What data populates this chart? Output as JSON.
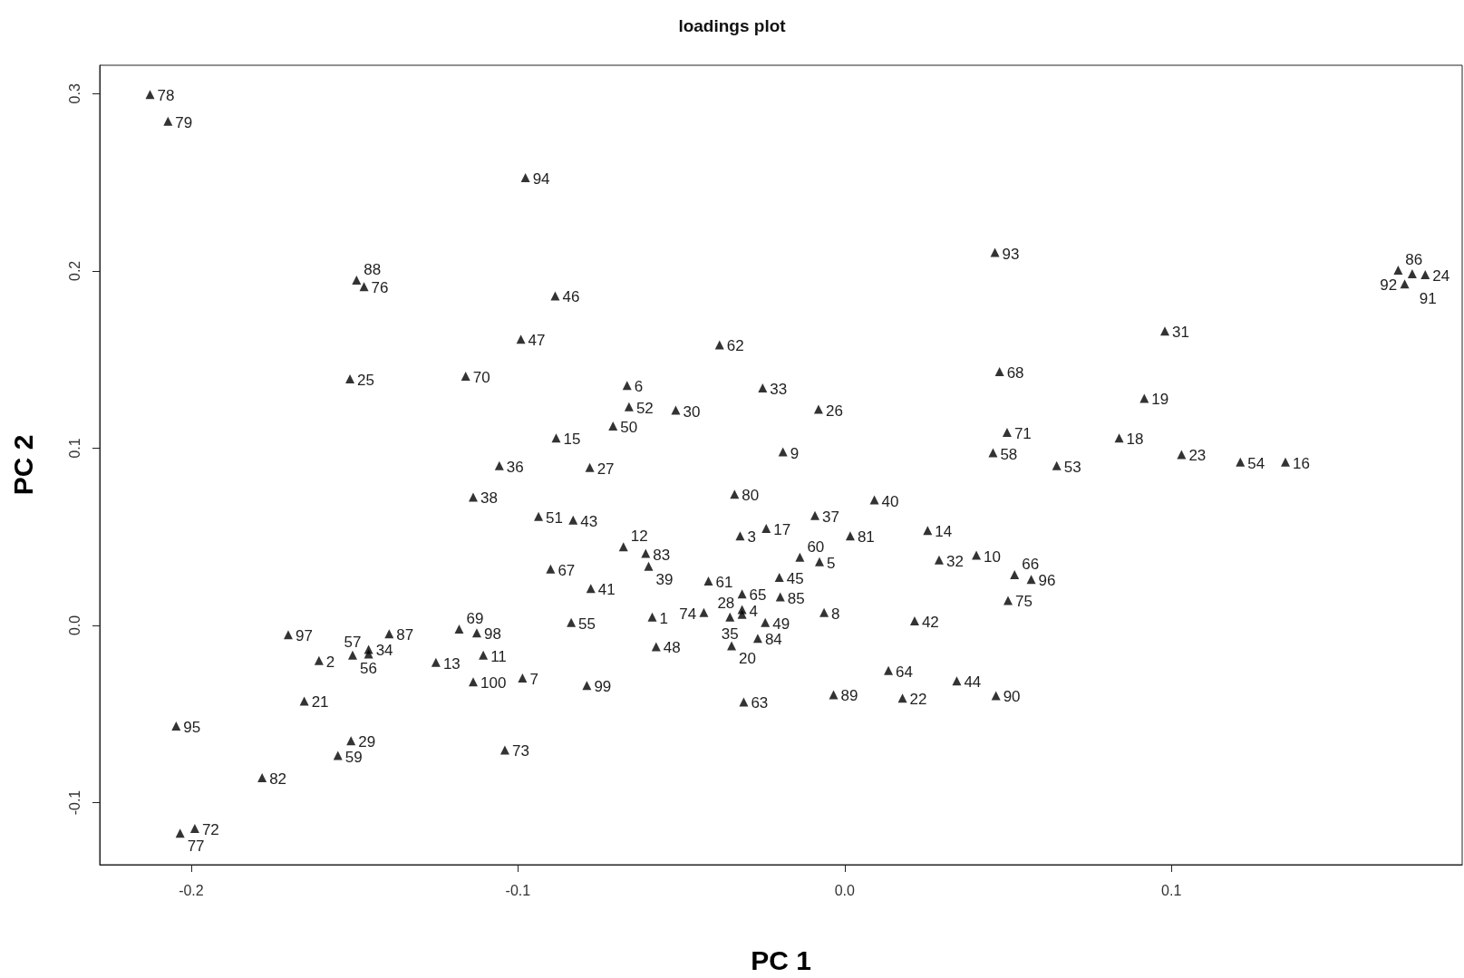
{
  "chart_data": {
    "type": "scatter",
    "title": "loadings plot",
    "xlabel": "PC 1",
    "ylabel": "PC 2",
    "color": "#000000",
    "marker": "triangle",
    "grid": false,
    "xlim": [
      -0.228,
      0.189
    ],
    "ylim": [
      -0.135,
      0.316
    ],
    "xticks": [
      -0.2,
      -0.1,
      {
        "value": 0,
        "label": "0.0"
      },
      0.1
    ],
    "yticks": [
      -0.1,
      {
        "value": 0,
        "label": "0.0"
      },
      0.1,
      0.2,
      0.3
    ],
    "x": [
      -0.2126,
      -0.2071,
      -0.0977,
      0.046,
      0.1694,
      0.1737,
      0.1777,
      0.1714,
      -0.1494,
      -0.1471,
      -0.0886,
      0.098,
      -0.0991,
      -0.0383,
      -0.1514,
      -0.116,
      0.0474,
      -0.0666,
      -0.0251,
      -0.066,
      -0.0517,
      -0.008,
      0.0917,
      -0.0709,
      -0.0883,
      0.0497,
      -0.0189,
      0.084,
      0.1031,
      0.1211,
      0.1349,
      0.0454,
      0.0649,
      -0.1057,
      -0.078,
      -0.1137,
      -0.0337,
      0.0091,
      -0.0937,
      -0.0831,
      -0.0091,
      -0.024,
      0.0017,
      0.0254,
      -0.032,
      -0.0677,
      -0.0609,
      -0.0137,
      -0.0077,
      0.0289,
      0.0403,
      -0.06,
      -0.09,
      -0.02,
      0.052,
      0.0571,
      -0.0417,
      -0.0777,
      -0.0314,
      -0.0197,
      0.05,
      -0.0314,
      -0.0314,
      -0.0351,
      -0.0431,
      -0.0243,
      -0.0346,
      -0.0266,
      -0.0063,
      0.0214,
      -0.0589,
      -0.0837,
      -0.0577,
      -0.1703,
      -0.1394,
      -0.118,
      -0.1126,
      -0.1609,
      -0.1506,
      -0.1457,
      -0.1457,
      -0.1251,
      -0.1106,
      -0.1137,
      -0.0986,
      -0.0789,
      0.0134,
      0.0343,
      0.0463,
      0.0177,
      -0.0034,
      -0.0309,
      -0.1654,
      -0.2046,
      -0.1511,
      -0.1551,
      -0.104,
      -0.1783,
      -0.1989,
      -0.2034
    ],
    "values": [
      0.2995,
      0.2844,
      0.2526,
      0.2104,
      0.2005,
      0.1984,
      0.1979,
      0.1927,
      0.1948,
      0.1911,
      0.1859,
      0.1661,
      0.1615,
      0.1583,
      0.1391,
      0.1406,
      0.1432,
      0.1354,
      0.1339,
      0.1234,
      0.1214,
      0.1219,
      0.1281,
      0.1125,
      0.1057,
      0.1089,
      0.0979,
      0.1057,
      0.0964,
      0.0922,
      0.0922,
      0.0974,
      0.0901,
      0.0901,
      0.0891,
      0.0724,
      0.074,
      0.0708,
      0.0615,
      0.0594,
      0.062,
      0.0547,
      0.0505,
      0.0536,
      0.0505,
      0.0443,
      0.0406,
      0.0385,
      0.0359,
      0.037,
      0.0396,
      0.0333,
      0.0318,
      0.0271,
      0.0286,
      0.026,
      0.025,
      0.0208,
      0.0177,
      0.0161,
      0.0141,
      0.0089,
      0.0063,
      0.0047,
      0.0073,
      0.0016,
      -0.0115,
      -0.0073,
      0.0073,
      0.0026,
      0.0047,
      0.0016,
      -0.012,
      -0.0052,
      -0.0047,
      -0.0021,
      -0.0042,
      -0.0198,
      -0.0167,
      -0.0161,
      -0.0135,
      -0.0208,
      -0.0167,
      -0.0318,
      -0.0297,
      -0.0339,
      -0.0255,
      -0.0313,
      -0.0396,
      -0.0411,
      -0.0391,
      -0.0432,
      -0.0427,
      -0.0568,
      -0.0651,
      -0.0734,
      -0.0703,
      -0.0859,
      -0.1146,
      -0.1172
    ],
    "annotations": [
      {
        "text": "78",
        "x": -0.2126,
        "y": 0.2995
      },
      {
        "text": "79",
        "x": -0.2071,
        "y": 0.2844
      },
      {
        "text": "94",
        "x": -0.0977,
        "y": 0.2526
      },
      {
        "text": "93",
        "x": 0.046,
        "y": 0.2104
      },
      {
        "text": "86",
        "x": 0.1694,
        "y": 0.2005
      },
      {
        "text": "91",
        "x": 0.1737,
        "y": 0.1984
      },
      {
        "text": "24",
        "x": 0.1777,
        "y": 0.1979
      },
      {
        "text": "92",
        "x": 0.1714,
        "y": 0.1927
      },
      {
        "text": "88",
        "x": -0.1494,
        "y": 0.1948
      },
      {
        "text": "76",
        "x": -0.1471,
        "y": 0.1911
      },
      {
        "text": "46",
        "x": -0.0886,
        "y": 0.1859
      },
      {
        "text": "31",
        "x": 0.098,
        "y": 0.1661
      },
      {
        "text": "47",
        "x": -0.0991,
        "y": 0.1615
      },
      {
        "text": "62",
        "x": -0.0383,
        "y": 0.1583
      },
      {
        "text": "25",
        "x": -0.1514,
        "y": 0.1391
      },
      {
        "text": "70",
        "x": -0.116,
        "y": 0.1406
      },
      {
        "text": "68",
        "x": 0.0474,
        "y": 0.1432
      },
      {
        "text": "6",
        "x": -0.0666,
        "y": 0.1354
      },
      {
        "text": "33",
        "x": -0.0251,
        "y": 0.1339
      },
      {
        "text": "52",
        "x": -0.066,
        "y": 0.1234
      },
      {
        "text": "30",
        "x": -0.0517,
        "y": 0.1214
      },
      {
        "text": "26",
        "x": -0.008,
        "y": 0.1219
      },
      {
        "text": "19",
        "x": 0.0917,
        "y": 0.1281
      },
      {
        "text": "50",
        "x": -0.0709,
        "y": 0.1125
      },
      {
        "text": "15",
        "x": -0.0883,
        "y": 0.1057
      },
      {
        "text": "71",
        "x": 0.0497,
        "y": 0.1089
      },
      {
        "text": "9",
        "x": -0.0189,
        "y": 0.0979
      },
      {
        "text": "18",
        "x": 0.084,
        "y": 0.1057
      },
      {
        "text": "23",
        "x": 0.1031,
        "y": 0.0964
      },
      {
        "text": "54",
        "x": 0.1211,
        "y": 0.0922
      },
      {
        "text": "16",
        "x": 0.1349,
        "y": 0.0922
      },
      {
        "text": "58",
        "x": 0.0454,
        "y": 0.0974
      },
      {
        "text": "53",
        "x": 0.0649,
        "y": 0.0901
      },
      {
        "text": "36",
        "x": -0.1057,
        "y": 0.0901
      },
      {
        "text": "27",
        "x": -0.078,
        "y": 0.0891
      },
      {
        "text": "38",
        "x": -0.1137,
        "y": 0.0724
      },
      {
        "text": "80",
        "x": -0.0337,
        "y": 0.074
      },
      {
        "text": "40",
        "x": 0.0091,
        "y": 0.0708
      },
      {
        "text": "51",
        "x": -0.0937,
        "y": 0.0615
      },
      {
        "text": "43",
        "x": -0.0831,
        "y": 0.0594
      },
      {
        "text": "37",
        "x": -0.0091,
        "y": 0.062
      },
      {
        "text": "17",
        "x": -0.024,
        "y": 0.0547
      },
      {
        "text": "81",
        "x": 0.0017,
        "y": 0.0505
      },
      {
        "text": "14",
        "x": 0.0254,
        "y": 0.0536
      },
      {
        "text": "3",
        "x": -0.032,
        "y": 0.0505
      },
      {
        "text": "12",
        "x": -0.0677,
        "y": 0.0443
      },
      {
        "text": "83",
        "x": -0.0609,
        "y": 0.0406
      },
      {
        "text": "60",
        "x": -0.0137,
        "y": 0.0385
      },
      {
        "text": "5",
        "x": -0.0077,
        "y": 0.0359
      },
      {
        "text": "32",
        "x": 0.0289,
        "y": 0.037
      },
      {
        "text": "10",
        "x": 0.0403,
        "y": 0.0396
      },
      {
        "text": "39",
        "x": -0.06,
        "y": 0.0333
      },
      {
        "text": "67",
        "x": -0.09,
        "y": 0.0318
      },
      {
        "text": "45",
        "x": -0.02,
        "y": 0.0271
      },
      {
        "text": "66",
        "x": 0.052,
        "y": 0.0286
      },
      {
        "text": "96",
        "x": 0.0571,
        "y": 0.026
      },
      {
        "text": "61",
        "x": -0.0417,
        "y": 0.025
      },
      {
        "text": "41",
        "x": -0.0777,
        "y": 0.0208
      },
      {
        "text": "65",
        "x": -0.0314,
        "y": 0.0177
      },
      {
        "text": "85",
        "x": -0.0197,
        "y": 0.0161
      },
      {
        "text": "75",
        "x": 0.05,
        "y": 0.0141
      },
      {
        "text": "4",
        "x": -0.0314,
        "y": 0.0089
      },
      {
        "text": "28",
        "x": -0.0314,
        "y": 0.0063
      },
      {
        "text": "35",
        "x": -0.0351,
        "y": 0.0047
      },
      {
        "text": "74",
        "x": -0.0431,
        "y": 0.0073
      },
      {
        "text": "49",
        "x": -0.0243,
        "y": 0.0016
      },
      {
        "text": "20",
        "x": -0.0346,
        "y": -0.0115
      },
      {
        "text": "84",
        "x": -0.0266,
        "y": -0.0073
      },
      {
        "text": "8",
        "x": -0.0063,
        "y": 0.0073
      },
      {
        "text": "42",
        "x": 0.0214,
        "y": 0.0026
      },
      {
        "text": "1",
        "x": -0.0589,
        "y": 0.0047
      },
      {
        "text": "55",
        "x": -0.0837,
        "y": 0.0016
      },
      {
        "text": "48",
        "x": -0.0577,
        "y": -0.012
      },
      {
        "text": "97",
        "x": -0.1703,
        "y": -0.0052
      },
      {
        "text": "87",
        "x": -0.1394,
        "y": -0.0047
      },
      {
        "text": "69",
        "x": -0.118,
        "y": -0.0021
      },
      {
        "text": "98",
        "x": -0.1126,
        "y": -0.0042
      },
      {
        "text": "2",
        "x": -0.1609,
        "y": -0.0198
      },
      {
        "text": "56",
        "x": -0.1506,
        "y": -0.0167
      },
      {
        "text": "57",
        "x": -0.1457,
        "y": -0.0161
      },
      {
        "text": "34",
        "x": -0.1457,
        "y": -0.0135
      },
      {
        "text": "13",
        "x": -0.1251,
        "y": -0.0208
      },
      {
        "text": "11",
        "x": -0.1106,
        "y": -0.0167
      },
      {
        "text": "100",
        "x": -0.1137,
        "y": -0.0318
      },
      {
        "text": "7",
        "x": -0.0986,
        "y": -0.0297
      },
      {
        "text": "99",
        "x": -0.0789,
        "y": -0.0339
      },
      {
        "text": "64",
        "x": 0.0134,
        "y": -0.0255
      },
      {
        "text": "44",
        "x": 0.0343,
        "y": -0.0313
      },
      {
        "text": "90",
        "x": 0.0463,
        "y": -0.0396
      },
      {
        "text": "22",
        "x": 0.0177,
        "y": -0.0411
      },
      {
        "text": "89",
        "x": -0.0034,
        "y": -0.0391
      },
      {
        "text": "63",
        "x": -0.0309,
        "y": -0.0432
      },
      {
        "text": "21",
        "x": -0.1654,
        "y": -0.0427
      },
      {
        "text": "95",
        "x": -0.2046,
        "y": -0.0568
      },
      {
        "text": "29",
        "x": -0.1511,
        "y": -0.0651
      },
      {
        "text": "59",
        "x": -0.1551,
        "y": -0.0734
      },
      {
        "text": "73",
        "x": -0.104,
        "y": -0.0703
      },
      {
        "text": "82",
        "x": -0.1783,
        "y": -0.0859
      },
      {
        "text": "72",
        "x": -0.1989,
        "y": -0.1146
      },
      {
        "text": "77",
        "x": -0.2034,
        "y": -0.1172
      }
    ]
  }
}
